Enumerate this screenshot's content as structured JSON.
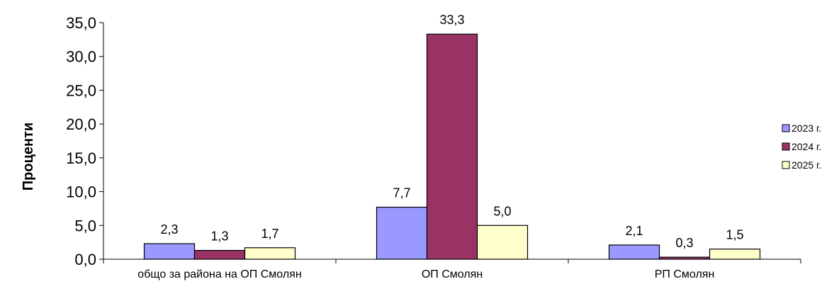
{
  "chart_data": {
    "type": "bar",
    "title": "",
    "xlabel": "",
    "ylabel": "Проценти",
    "ylim": [
      0,
      35
    ],
    "ytick_step": 5,
    "ytick_labels": [
      "0,0",
      "5,0",
      "10,0",
      "15,0",
      "20,0",
      "25,0",
      "30,0",
      "35,0"
    ],
    "categories": [
      "общо за района на  ОП Смолян",
      "ОП Смолян",
      "РП Смолян"
    ],
    "series": [
      {
        "name": "2023 г.",
        "color": "#9999ff",
        "values": [
          2.3,
          7.7,
          2.1
        ],
        "labels": [
          "2,3",
          "7,7",
          "2,1"
        ]
      },
      {
        "name": "2024 г.",
        "color": "#993366",
        "values": [
          1.3,
          33.3,
          0.3
        ],
        "labels": [
          "1,3",
          "33,3",
          "0,3"
        ]
      },
      {
        "name": "2025 г.",
        "color": "#ffffcc",
        "values": [
          1.7,
          5.0,
          1.5
        ],
        "labels": [
          "1,7",
          "5,0",
          "1,5"
        ]
      }
    ],
    "grid": false,
    "legend_position": "right"
  }
}
